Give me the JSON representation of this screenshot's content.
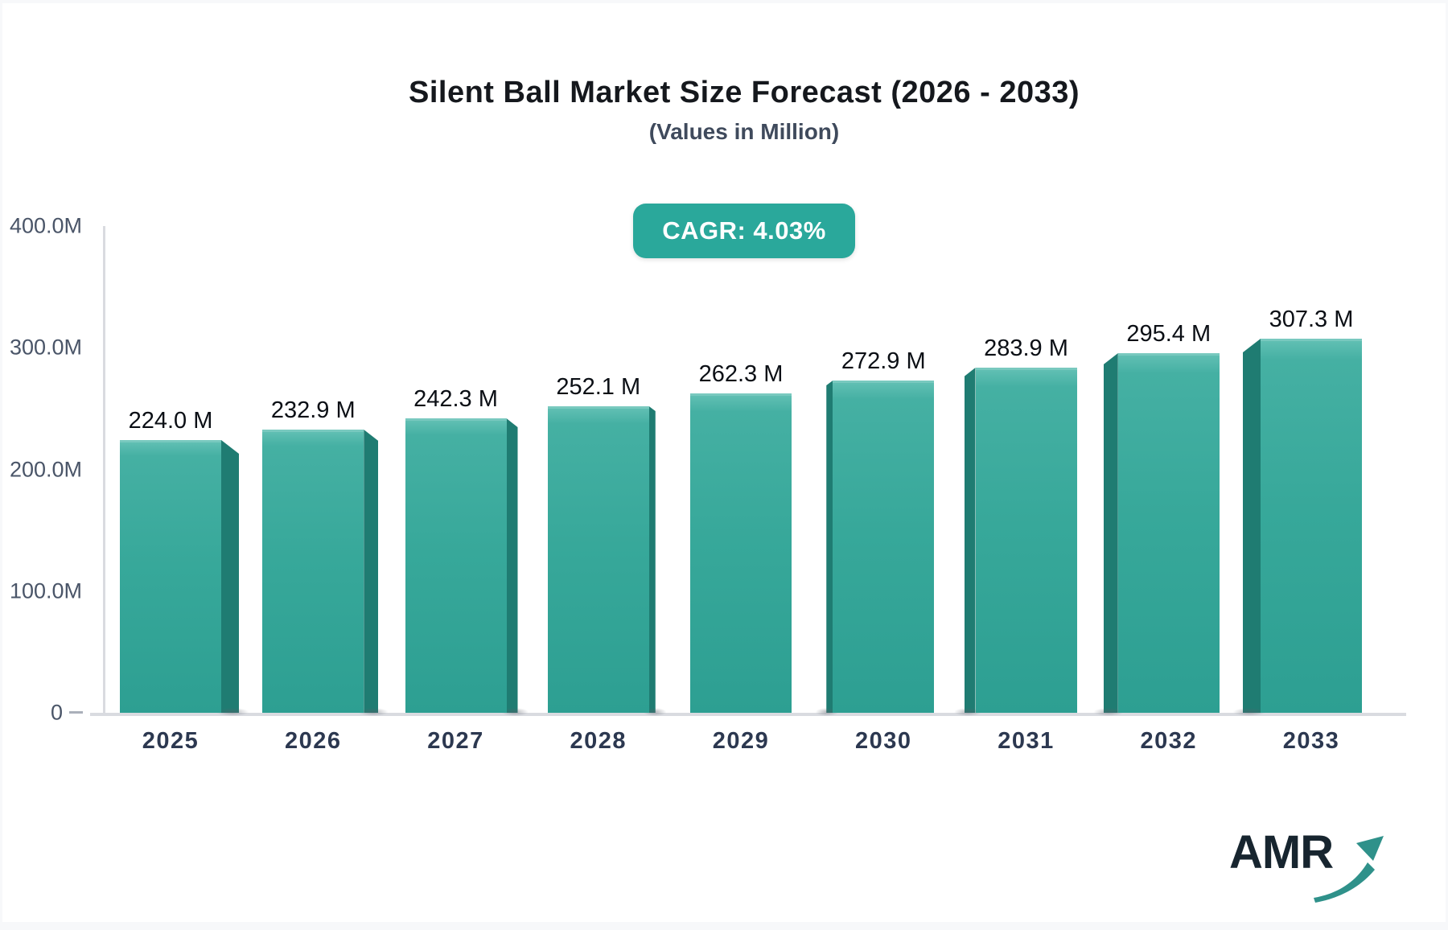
{
  "header": {
    "title": "Silent Ball Market Size Forecast (2026 - 2033)",
    "subtitle": "(Values in Million)",
    "cagr_badge": "CAGR: 4.03%"
  },
  "chart_data": {
    "type": "bar",
    "title": "Silent Ball Market Size Forecast (2026 - 2033)",
    "subtitle": "(Values in Million)",
    "cagr": "CAGR: 4.03%",
    "categories": [
      "2025",
      "2026",
      "2027",
      "2028",
      "2029",
      "2030",
      "2031",
      "2032",
      "2033"
    ],
    "values": [
      224.0,
      232.9,
      242.3,
      252.1,
      262.3,
      272.9,
      283.9,
      295.4,
      307.3
    ],
    "value_labels": [
      "224.0 M",
      "232.9 M",
      "242.3 M",
      "252.1 M",
      "262.3 M",
      "272.9 M",
      "283.9 M",
      "295.4 M",
      "307.3 M"
    ],
    "unit": "Million",
    "ylim": [
      0,
      400
    ],
    "y_ticks": [
      {
        "label": "400.0M",
        "value": 400
      },
      {
        "label": "300.0M",
        "value": 300
      },
      {
        "label": "200.0M",
        "value": 200
      },
      {
        "label": "100.0M",
        "value": 100
      },
      {
        "label": "0",
        "value": 0
      }
    ],
    "grid": "off",
    "legend": "none"
  },
  "colors": {
    "accent_teal": "#2aa89b",
    "bar_top": "#60bfb3",
    "bar_mid": "#37a89a",
    "bar_bottom": "#2d9f92",
    "bar_side_3d": "#1f7c72",
    "axis_line": "#d9dbe0",
    "tick_text": "#4a5568",
    "year_text": "#2c3850",
    "value_text": "#0b0f15",
    "title_text": "#15181d",
    "logo_dark": "#17252f",
    "logo_arrow": "#2f918a"
  },
  "logo": {
    "text": "AMR"
  }
}
